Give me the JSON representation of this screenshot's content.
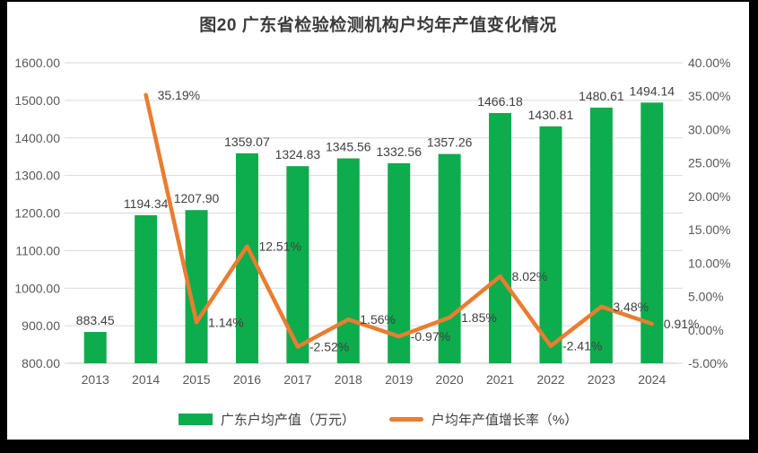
{
  "title": "图20 广东省检验检测机构户均年产值变化情况",
  "colors": {
    "bar": "#0DAC4D",
    "line": "#E97D31",
    "grid": "#D9D9D9",
    "axis_line": "#C6C6C6",
    "tick_label": "#595959",
    "data_label": "#404040",
    "title_text": "#3B3B3B",
    "frame_background": "#000000",
    "chart_background": "#FFFFFF"
  },
  "legend": {
    "position": "bottom",
    "items": [
      {
        "label": "广东户均产值（万元）",
        "swatch": "bar"
      },
      {
        "label": "户均年产值增长率（%）",
        "swatch": "line"
      }
    ]
  },
  "chart_data": {
    "type": "combo-bar-line",
    "title": "图20 广东省检验检测机构户均年产值变化情况",
    "categories": [
      "2013",
      "2014",
      "2015",
      "2016",
      "2017",
      "2018",
      "2019",
      "2020",
      "2021",
      "2022",
      "2023",
      "2024"
    ],
    "series": [
      {
        "name": "广东户均产值（万元）",
        "type": "bar",
        "axis": "left",
        "color": "#0DAC4D",
        "values": [
          883.45,
          1194.34,
          1207.9,
          1359.07,
          1324.83,
          1345.56,
          1332.56,
          1357.26,
          1466.18,
          1430.81,
          1480.61,
          1494.14
        ],
        "labels": [
          "883.45",
          "1194.34",
          "1207.90",
          "1359.07",
          "1324.83",
          "1345.56",
          "1332.56",
          "1357.26",
          "1466.18",
          "1430.81",
          "1480.61",
          "1494.14"
        ]
      },
      {
        "name": "户均年产值增长率（%）",
        "type": "line",
        "axis": "right",
        "color": "#E97D31",
        "values": [
          null,
          35.19,
          1.14,
          12.51,
          -2.52,
          1.56,
          -0.97,
          1.85,
          8.02,
          -2.41,
          3.48,
          0.91
        ],
        "labels": [
          null,
          "35.19%",
          "1.14%",
          "12.51%",
          "-2.52%",
          "1.56%",
          "-0.97%",
          "1.85%",
          "8.02%",
          "-2.41%",
          "3.48%",
          "0.91%"
        ]
      }
    ],
    "left_axis": {
      "min": 800,
      "max": 1600,
      "step": 100,
      "tick_values": [
        800,
        900,
        1000,
        1100,
        1200,
        1300,
        1400,
        1500,
        1600
      ],
      "tick_labels": [
        "800.00",
        "900.00",
        "1000.00",
        "1100.00",
        "1200.00",
        "1300.00",
        "1400.00",
        "1500.00",
        "1600.00"
      ]
    },
    "right_axis": {
      "min": -5,
      "max": 40,
      "step": 5,
      "tick_values": [
        -5,
        0,
        5,
        10,
        15,
        20,
        25,
        30,
        35,
        40
      ],
      "tick_labels": [
        "-5.00%",
        "0.00%",
        "5.00%",
        "10.00%",
        "15.00%",
        "20.00%",
        "25.00%",
        "30.00%",
        "35.00%",
        "40.00%"
      ]
    },
    "grid": true,
    "legend_position": "bottom"
  }
}
